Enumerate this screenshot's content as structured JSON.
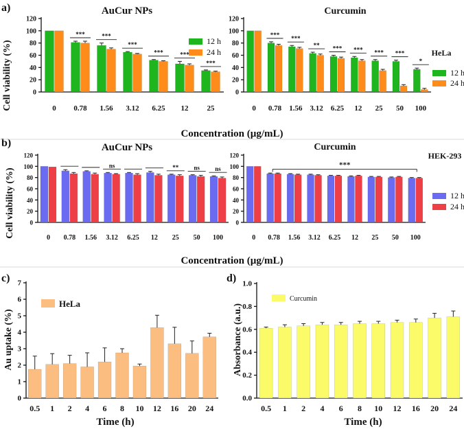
{
  "colors": {
    "green": "#1fb51f",
    "orange": "#ff8c1a",
    "blue": "#6b6bf2",
    "red": "#ef3f46",
    "tan": "#fbbd80",
    "yellow": "#fbfb6a",
    "axis": "#111111"
  },
  "section_a": {
    "label": "a)",
    "xlabel": "Concentration (µg/mL)",
    "ylabel": "Cell viability (%)"
  },
  "section_b": {
    "label": "b)",
    "xlabel": "Concentration (µg/mL)",
    "ylabel": "Cell viability (%)"
  },
  "chart_data": [
    {
      "id": "a-left",
      "type": "bar",
      "title": "AuCur NPs",
      "categories": [
        "0",
        "0.78",
        "1.56",
        "3.12",
        "6.25",
        "12",
        "25"
      ],
      "ylim": [
        0,
        120
      ],
      "yticks": [
        0,
        20,
        40,
        60,
        80,
        100,
        120
      ],
      "series": [
        {
          "name": "12 h",
          "color": "green",
          "values": [
            100,
            81,
            76,
            65,
            52,
            46,
            35
          ],
          "errors": [
            0,
            2,
            4,
            1,
            1,
            4,
            1
          ]
        },
        {
          "name": "24 h",
          "color": "orange",
          "values": [
            100,
            80,
            70,
            62,
            50,
            44,
            33
          ],
          "errors": [
            0,
            3,
            2,
            1,
            1,
            2,
            1
          ]
        }
      ],
      "legend": [
        "12 h",
        "24 h"
      ],
      "significance": [
        "***",
        "***",
        "***",
        "***",
        "***",
        "***"
      ]
    },
    {
      "id": "a-right",
      "type": "bar",
      "title": "Curcumin",
      "categories": [
        "0",
        "0.78",
        "1.56",
        "3.12",
        "6.25",
        "12",
        "25",
        "50",
        "100"
      ],
      "ylim": [
        0,
        120
      ],
      "yticks": [
        0,
        20,
        40,
        60,
        80,
        100,
        120
      ],
      "series": [
        {
          "name": "12 h",
          "color": "green",
          "values": [
            100,
            80,
            74,
            63,
            58,
            56,
            51,
            50,
            37
          ],
          "errors": [
            0,
            2,
            2,
            2,
            2,
            2,
            2,
            2,
            2
          ]
        },
        {
          "name": "24 h",
          "color": "orange",
          "values": [
            100,
            76,
            71,
            60,
            55,
            51,
            35,
            10,
            4
          ],
          "errors": [
            0,
            2,
            2,
            2,
            2,
            2,
            2,
            2,
            2
          ]
        }
      ],
      "legend_title": "HeLa",
      "legend": [
        "12 h",
        "24 h"
      ],
      "significance": [
        "***",
        "***",
        "**",
        "***",
        "***",
        "***",
        "***",
        "*"
      ]
    },
    {
      "id": "b-left",
      "type": "bar",
      "title": "AuCur NPs",
      "categories": [
        "0",
        "0.78",
        "1.56",
        "3.12",
        "6.25",
        "12",
        "25",
        "50",
        "100"
      ],
      "ylim": [
        0,
        120
      ],
      "yticks": [
        0,
        20,
        40,
        60,
        80,
        100,
        120
      ],
      "series": [
        {
          "name": "12 h",
          "color": "blue",
          "values": [
            100,
            92,
            91,
            88,
            88,
            89,
            85,
            84,
            82
          ],
          "errors": [
            0,
            2,
            1,
            1,
            1,
            2,
            1,
            1,
            1
          ]
        },
        {
          "name": "24 h",
          "color": "red",
          "values": [
            99,
            87,
            86,
            86,
            85,
            84,
            83,
            82,
            79
          ],
          "errors": [
            0,
            2,
            2,
            1,
            2,
            2,
            2,
            2,
            2
          ]
        }
      ],
      "significance": [
        "",
        "",
        "ns",
        "",
        "",
        "**",
        "ns",
        "ns"
      ]
    },
    {
      "id": "b-right",
      "type": "bar",
      "title": "Curcumin",
      "categories": [
        "0",
        "0.78",
        "1.56",
        "3.12",
        "6.25",
        "12",
        "25",
        "50",
        "100"
      ],
      "ylim": [
        0,
        120
      ],
      "yticks": [
        0,
        20,
        40,
        60,
        80,
        100,
        120
      ],
      "series": [
        {
          "name": "12 h",
          "color": "blue",
          "values": [
            100,
            87,
            86,
            85,
            83,
            82,
            81,
            80,
            79
          ],
          "errors": [
            0,
            1,
            1,
            1,
            1,
            1,
            1,
            1,
            1
          ]
        },
        {
          "name": "24 h",
          "color": "red",
          "values": [
            100,
            87,
            85,
            84,
            83,
            83,
            81,
            81,
            79
          ],
          "errors": [
            0,
            1,
            1,
            1,
            1,
            1,
            1,
            1,
            1
          ]
        }
      ],
      "legend_title": "HEK-293",
      "legend": [
        "12 h",
        "24 h"
      ],
      "significance_span": "***"
    },
    {
      "id": "c",
      "label": "c)",
      "type": "bar",
      "xlabel": "Time (h)",
      "ylabel": "Au uptake (%)",
      "categories": [
        "0.5",
        "1",
        "2",
        "4",
        "6",
        "8",
        "10",
        "12",
        "16",
        "20",
        "24"
      ],
      "ylim": [
        0,
        7
      ],
      "yticks": [
        0,
        1,
        2,
        3,
        4,
        5,
        6,
        7
      ],
      "series": [
        {
          "name": "HeLa",
          "color": "tan",
          "values": [
            1.75,
            2.05,
            2.1,
            1.9,
            2.2,
            2.75,
            1.95,
            4.28,
            3.3,
            2.72,
            3.72
          ],
          "errors": [
            0.8,
            0.65,
            0.5,
            0.85,
            0.85,
            0.25,
            0.12,
            0.75,
            1.0,
            0.75,
            0.22
          ]
        }
      ],
      "legend": [
        "HeLa"
      ]
    },
    {
      "id": "d",
      "label": "d)",
      "type": "bar",
      "xlabel": "Time (h)",
      "ylabel": "Absorbance (a.u.)",
      "categories": [
        "0.5",
        "1",
        "2",
        "4",
        "6",
        "8",
        "10",
        "12",
        "16",
        "20",
        "24"
      ],
      "ylim": [
        0,
        1.0
      ],
      "yticks": [
        "0.0",
        "0.2",
        "0.4",
        "0.6",
        "0.8",
        "1.0"
      ],
      "series": [
        {
          "name": "Curcumin",
          "color": "yellow",
          "values": [
            0.61,
            0.62,
            0.63,
            0.64,
            0.64,
            0.65,
            0.65,
            0.66,
            0.66,
            0.7,
            0.71
          ],
          "errors": [
            0.01,
            0.02,
            0.02,
            0.02,
            0.02,
            0.02,
            0.02,
            0.02,
            0.03,
            0.04,
            0.05
          ]
        }
      ],
      "legend": [
        "Curcumin"
      ]
    }
  ]
}
